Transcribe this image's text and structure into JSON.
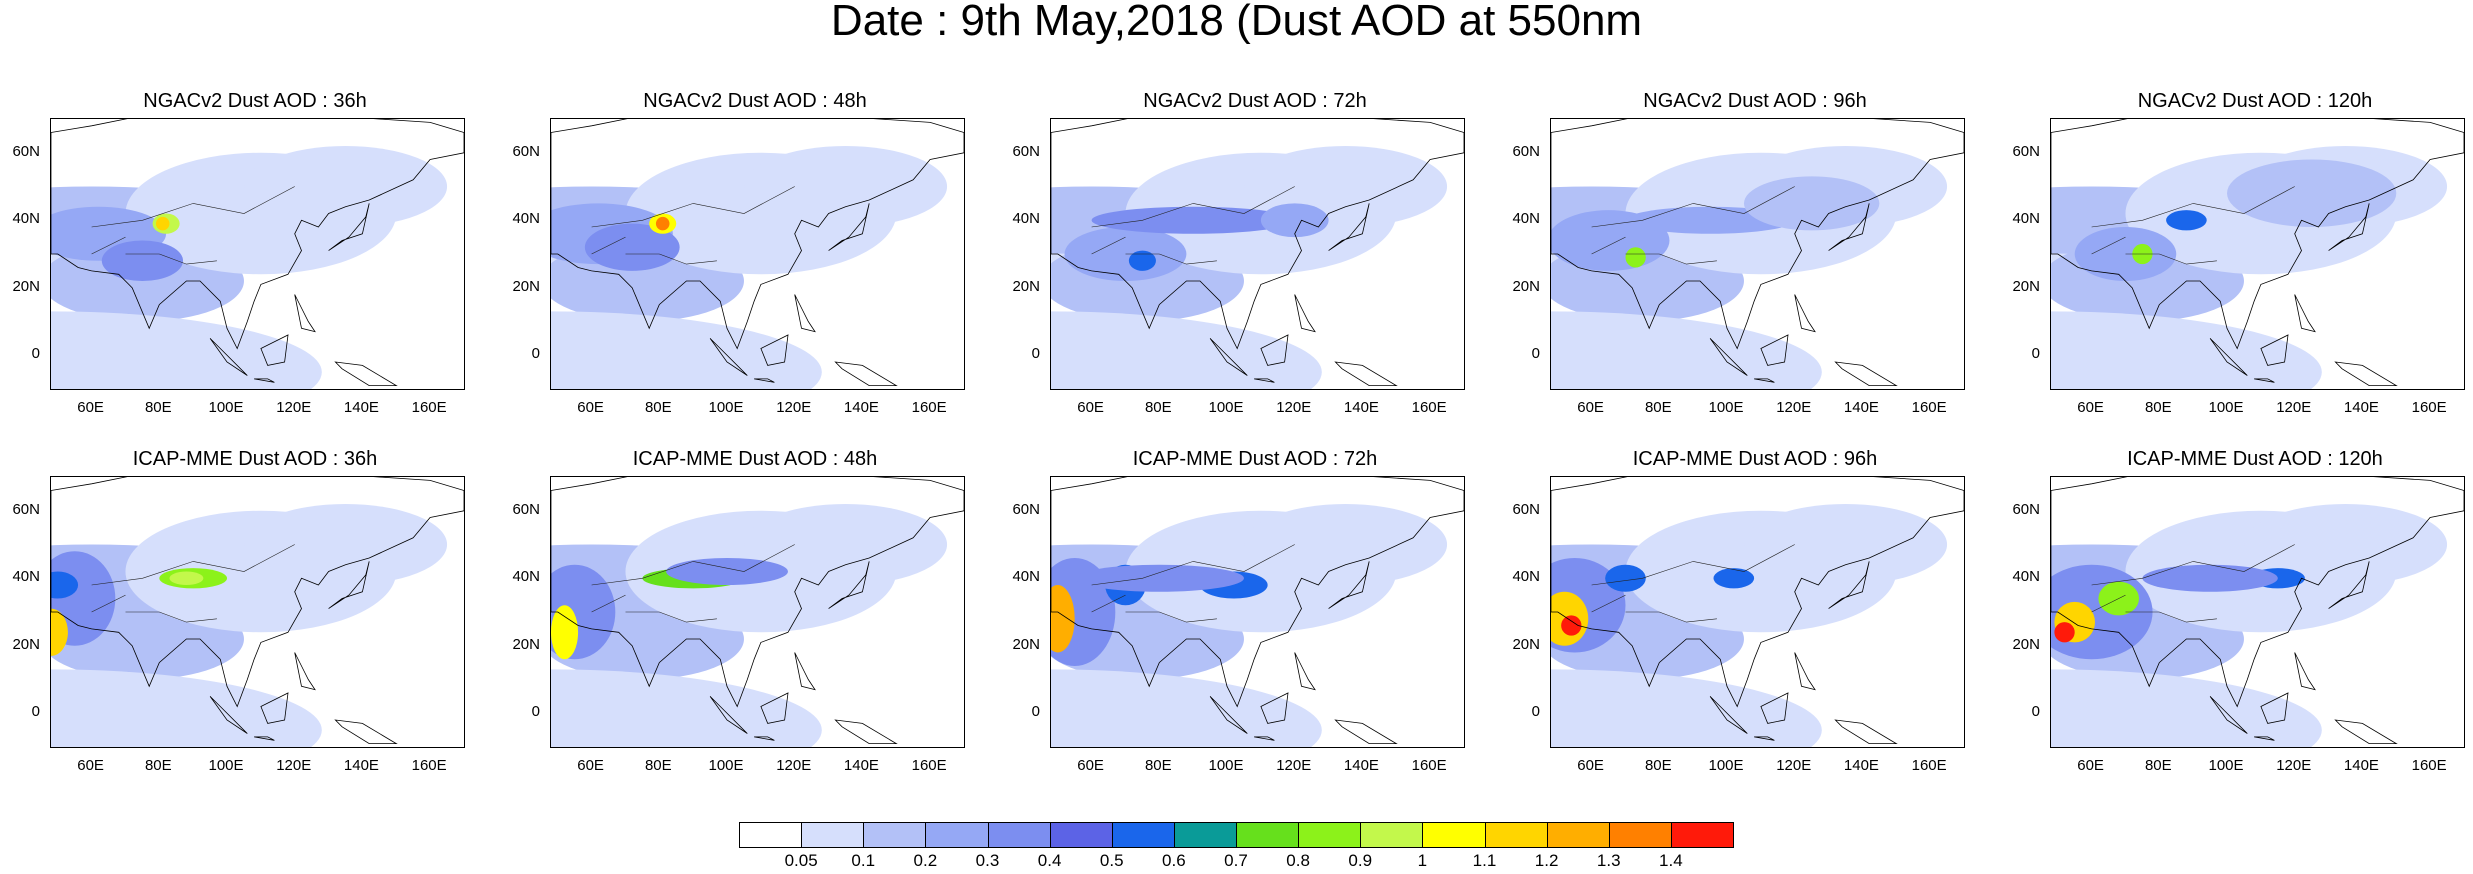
{
  "figure": {
    "title": "Date : 9th May,2018 (Dust AOD at 550nm"
  },
  "axes": {
    "y_ticks": [
      "60N",
      "40N",
      "20N",
      "0"
    ],
    "x_ticks": [
      "60E",
      "80E",
      "100E",
      "120E",
      "140E",
      "160E"
    ],
    "lat_range": [
      -10,
      70
    ],
    "lon_range": [
      48,
      170
    ]
  },
  "panels": [
    {
      "title": "NGACv2 Dust AOD : 36h"
    },
    {
      "title": "NGACv2 Dust AOD : 48h"
    },
    {
      "title": "NGACv2 Dust AOD : 72h"
    },
    {
      "title": "NGACv2 Dust AOD : 96h"
    },
    {
      "title": "NGACv2 Dust AOD : 120h"
    },
    {
      "title": "ICAP-MME Dust AOD : 36h"
    },
    {
      "title": "ICAP-MME Dust AOD : 48h"
    },
    {
      "title": "ICAP-MME Dust AOD : 72h"
    },
    {
      "title": "ICAP-MME Dust AOD : 96h"
    },
    {
      "title": "ICAP-MME Dust AOD : 120h"
    }
  ],
  "colorbar": {
    "labels": [
      "0.05",
      "0.1",
      "0.2",
      "0.3",
      "0.4",
      "0.5",
      "0.6",
      "0.7",
      "0.8",
      "0.9",
      "1",
      "1.1",
      "1.2",
      "1.3",
      "1.4"
    ],
    "colors": [
      "#ffffff",
      "#d6dffc",
      "#b3c1f7",
      "#95a8f5",
      "#7c8ef0",
      "#5c63e6",
      "#1a66eb",
      "#0a9b98",
      "#66e01c",
      "#8cf21a",
      "#c3f84b",
      "#ffff00",
      "#ffd500",
      "#ffae00",
      "#ff8000",
      "#ff1a0a"
    ]
  }
}
